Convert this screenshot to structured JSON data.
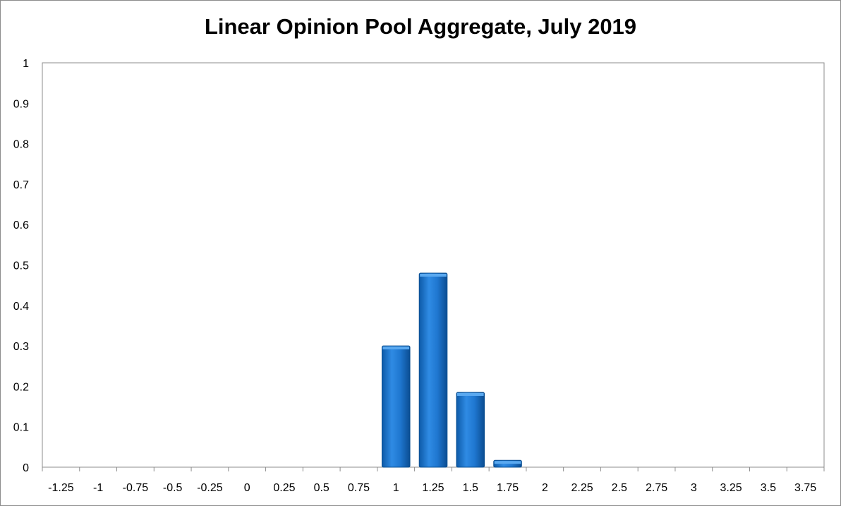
{
  "chart_data": {
    "type": "bar",
    "title": "Linear Opinion Pool Aggregate, July 2019",
    "xlabel": "",
    "ylabel": "",
    "ylim": [
      0,
      1
    ],
    "yticks": [
      "0",
      "0.1",
      "0.2",
      "0.3",
      "0.4",
      "0.5",
      "0.6",
      "0.7",
      "0.8",
      "0.9",
      "1"
    ],
    "categories": [
      "-1.25",
      "-1",
      "-0.75",
      "-0.5",
      "-0.25",
      "0",
      "0.25",
      "0.5",
      "0.75",
      "1",
      "1.25",
      "1.5",
      "1.75",
      "2",
      "2.25",
      "2.5",
      "2.75",
      "3",
      "3.25",
      "3.5",
      "3.75"
    ],
    "values": [
      0,
      0,
      0,
      0,
      0,
      0,
      0,
      0,
      0,
      0.3,
      0.48,
      0.185,
      0.017,
      0,
      0,
      0,
      0,
      0,
      0,
      0,
      0
    ],
    "grid": false,
    "legend": "none",
    "colors": {
      "bar": "#1f77d0",
      "bar_edge": "#0a4f91",
      "axis": "#8c8c8c"
    }
  }
}
